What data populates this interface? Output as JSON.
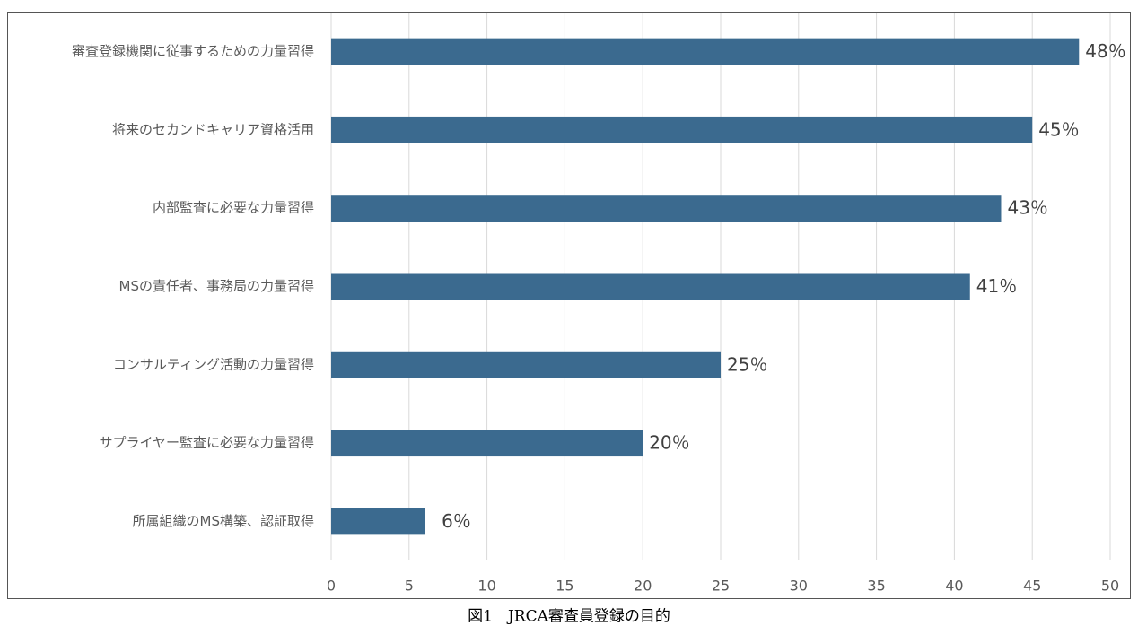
{
  "chart_data": {
    "type": "barh",
    "caption": "図1　JRCA審査員登録の目的",
    "categories": [
      "審査登録機関に従事するための力量習得",
      "将来のセカンドキャリア資格活用",
      "内部監査に必要な力量習得",
      "MSの責任者、事務局の力量習得",
      "コンサルティング活動の力量習得",
      "サプライヤー監査に必要な力量習得",
      "所属組織のMS構築、認証取得"
    ],
    "values": [
      48,
      45,
      43,
      41,
      25,
      20,
      6
    ],
    "value_labels": [
      "48％",
      "45％",
      "43％",
      "41％",
      "25％",
      "20％",
      "6％"
    ],
    "color": "#3b6a8f",
    "xlim": [
      0,
      50
    ],
    "xticks": [
      0,
      5,
      10,
      15,
      20,
      25,
      30,
      35,
      40,
      45,
      50
    ],
    "grid": true
  }
}
